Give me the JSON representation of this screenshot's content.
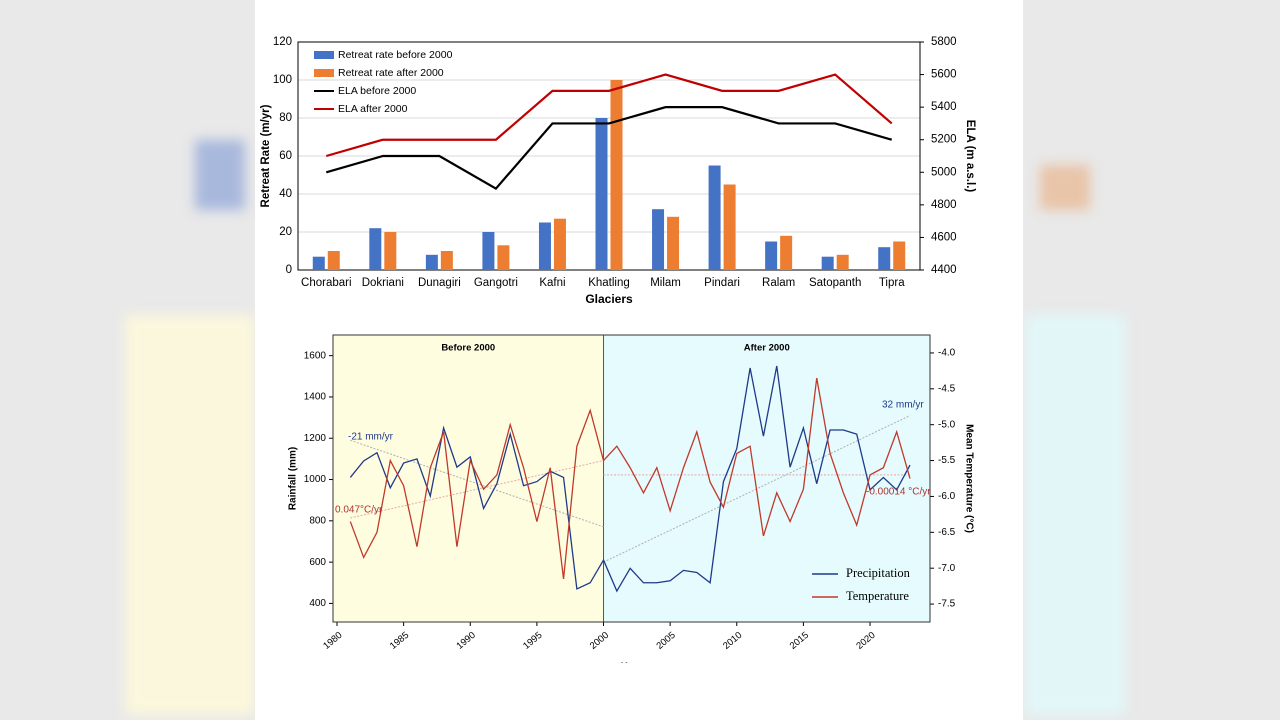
{
  "chart_data": [
    {
      "type": "bar",
      "x_label": "Glaciers",
      "y_label": "Retreat Rate (m/yr)",
      "y2_label": "ELA (m a.s.l.)",
      "categories": [
        "Chorabari",
        "Dokriani",
        "Dunagiri",
        "Gangotri",
        "Kafni",
        "Khatling",
        "Milam",
        "Pindari",
        "Ralam",
        "Satopanth",
        "Tipra"
      ],
      "series": [
        {
          "name": "Retreat rate before 2000",
          "type": "bar",
          "color": "#4472c4",
          "values": [
            7,
            22,
            8,
            20,
            25,
            80,
            32,
            55,
            15,
            7,
            12
          ]
        },
        {
          "name": "Retreat rate after 2000",
          "type": "bar",
          "color": "#ed7d31",
          "values": [
            10,
            20,
            10,
            13,
            27,
            100,
            28,
            45,
            18,
            8,
            15
          ]
        },
        {
          "name": "ELA before 2000",
          "type": "line",
          "axis": "y2",
          "color": "#000000",
          "values": [
            5000,
            5100,
            5100,
            4900,
            5300,
            5300,
            5400,
            5400,
            5300,
            5300,
            5200
          ]
        },
        {
          "name": "ELA after 2000",
          "type": "line",
          "axis": "y2",
          "color": "#c00000",
          "values": [
            5100,
            5200,
            5200,
            5200,
            5500,
            5500,
            5600,
            5500,
            5500,
            5600,
            5300
          ]
        }
      ],
      "ylim": [
        0,
        120
      ],
      "yticks": [
        0,
        20,
        40,
        60,
        80,
        100,
        120
      ],
      "y2lim": [
        4400,
        5800
      ],
      "y2ticks": [
        4400,
        4600,
        4800,
        5000,
        5200,
        5400,
        5600,
        5800
      ],
      "grid": true,
      "legend": "upper left"
    },
    {
      "type": "line",
      "x_label": "Year",
      "y_label": "Rainfall (mm)",
      "y2_label": "Mean Temperature (°C)",
      "x": [
        1981,
        1982,
        1983,
        1984,
        1985,
        1986,
        1987,
        1988,
        1989,
        1990,
        1991,
        1992,
        1993,
        1994,
        1995,
        1996,
        1997,
        1998,
        1999,
        2000,
        2001,
        2002,
        2003,
        2004,
        2005,
        2006,
        2007,
        2008,
        2009,
        2010,
        2011,
        2012,
        2013,
        2014,
        2015,
        2016,
        2017,
        2018,
        2019,
        2020,
        2021,
        2022,
        2023
      ],
      "series": [
        {
          "name": "Precipitation",
          "color": "#1f3a8a",
          "values": [
            1010,
            1090,
            1130,
            960,
            1080,
            1100,
            920,
            1250,
            1060,
            1110,
            860,
            980,
            1220,
            970,
            990,
            1040,
            1010,
            470,
            500,
            610,
            460,
            570,
            500,
            500,
            510,
            560,
            550,
            500,
            990,
            1150,
            1540,
            1210,
            1550,
            1060,
            1250,
            980,
            1240,
            1240,
            1220,
            950,
            1010,
            950,
            1070
          ]
        },
        {
          "name": "Temperature",
          "axis": "y2",
          "color": "#c0392b",
          "values": [
            -6.35,
            -6.85,
            -6.5,
            -5.5,
            -5.85,
            -6.7,
            -5.6,
            -5.1,
            -6.7,
            -5.5,
            -5.9,
            -5.7,
            -5.0,
            -5.6,
            -6.35,
            -5.6,
            -7.15,
            -5.3,
            -4.8,
            -5.5,
            -5.3,
            -5.6,
            -5.95,
            -5.6,
            -6.2,
            -5.6,
            -5.1,
            -5.8,
            -6.15,
            -5.4,
            -5.3,
            -6.55,
            -5.95,
            -6.35,
            -5.9,
            -4.35,
            -5.4,
            -5.95,
            -6.4,
            -5.7,
            -5.6,
            -5.1,
            -5.75
          ]
        }
      ],
      "trend_lines": [
        {
          "axis": "y",
          "color": "#b0b0b0",
          "x": [
            1981,
            2000
          ],
          "values": [
            1190,
            771
          ]
        },
        {
          "axis": "y",
          "color": "#b0b0b0",
          "x": [
            2000,
            2023
          ],
          "values": [
            600,
            1310
          ]
        },
        {
          "axis": "y2",
          "color": "#e3a9a9",
          "x": [
            1981,
            2000
          ],
          "values": [
            -6.3,
            -5.5
          ]
        },
        {
          "axis": "y2",
          "color": "#e3a9a9",
          "x": [
            2000,
            2023
          ],
          "values": [
            -5.7,
            -5.7
          ]
        }
      ],
      "annotations": [
        "-21 mm/yr",
        "32 mm/yr",
        "0.047°C/yr",
        "-0.00014 °C/yr"
      ],
      "regions": [
        {
          "label": "Before 2000",
          "range": [
            1979.7,
            2000
          ],
          "color": "#fffde0"
        },
        {
          "label": "After 2000",
          "range": [
            2000,
            2024.5
          ],
          "color": "#e6fbfd"
        }
      ],
      "xlim": [
        1979.7,
        2024.5
      ],
      "xticks": [
        1980,
        1985,
        1990,
        1995,
        2000,
        2005,
        2010,
        2015,
        2020
      ],
      "ylim": [
        310,
        1700
      ],
      "yticks": [
        400,
        600,
        800,
        1000,
        1200,
        1400,
        1600
      ],
      "y2lim": [
        -7.75,
        -3.75
      ],
      "y2ticks": [
        {
          "value": -4,
          "label": "-4.0"
        },
        {
          "value": -4.5,
          "label": "-4.5"
        },
        {
          "value": -5,
          "label": "-5.0"
        },
        {
          "value": -5.5,
          "label": "-5.5"
        },
        {
          "value": -6,
          "label": "-6.0"
        },
        {
          "value": -6.5,
          "label": "-6.5"
        },
        {
          "value": -7,
          "label": "-7.0"
        },
        {
          "value": -7.5,
          "label": "-7.5"
        }
      ],
      "legend": "lower right"
    }
  ]
}
